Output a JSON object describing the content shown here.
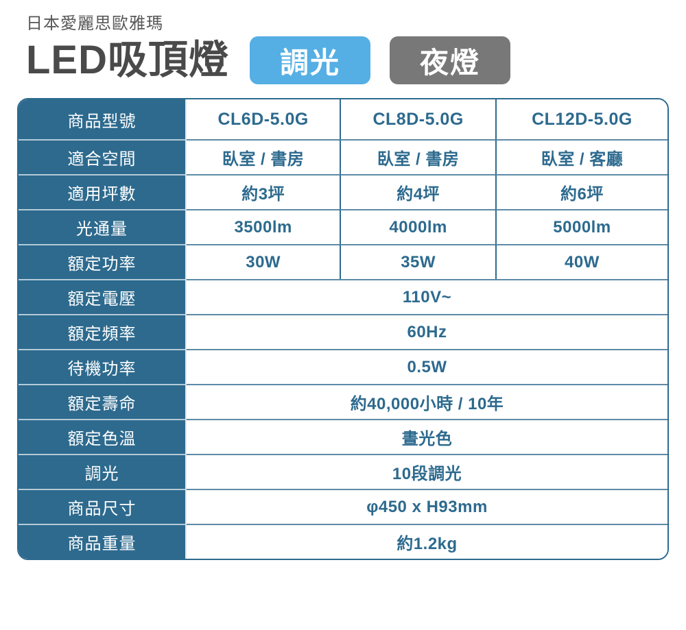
{
  "colors": {
    "accent": "#2d6a8e",
    "separator_line": "#5d8aa6",
    "badge_blue": "#55afe4",
    "badge_gray": "#787878",
    "title_text": "#4a4a4a",
    "brand_text": "#575757"
  },
  "header": {
    "brand": "日本愛麗思歐雅瑪",
    "title": "LED吸頂燈",
    "badges": [
      {
        "label": "調光",
        "color": "#55afe4"
      },
      {
        "label": "夜燈",
        "color": "#787878"
      }
    ]
  },
  "table": {
    "rows": [
      {
        "label": "商品型號",
        "values": [
          "CL6D-5.0G",
          "CL8D-5.0G",
          "CL12D-5.0G"
        ]
      },
      {
        "label": "適合空間",
        "values": [
          "臥室 / 書房",
          "臥室 / 書房",
          "臥室 / 客廳"
        ]
      },
      {
        "label": "適用坪數",
        "values": [
          "約3坪",
          "約4坪",
          "約6坪"
        ]
      },
      {
        "label": "光通量",
        "values": [
          "3500lm",
          "4000lm",
          "5000lm"
        ]
      },
      {
        "label": "額定功率",
        "values": [
          "30W",
          "35W",
          "40W"
        ]
      },
      {
        "label": "額定電壓",
        "values": [
          "110V~"
        ]
      },
      {
        "label": "額定頻率",
        "values": [
          "60Hz"
        ]
      },
      {
        "label": "待機功率",
        "values": [
          "0.5W"
        ]
      },
      {
        "label": "額定壽命",
        "values": [
          "約40,000小時 / 10年"
        ]
      },
      {
        "label": "額定色溫",
        "values": [
          "晝光色"
        ]
      },
      {
        "label": "調光",
        "values": [
          "10段調光"
        ]
      },
      {
        "label": "商品尺寸",
        "values": [
          "φ450 x H93mm"
        ]
      },
      {
        "label": "商品重量",
        "values": [
          "約1.2kg"
        ]
      }
    ]
  }
}
